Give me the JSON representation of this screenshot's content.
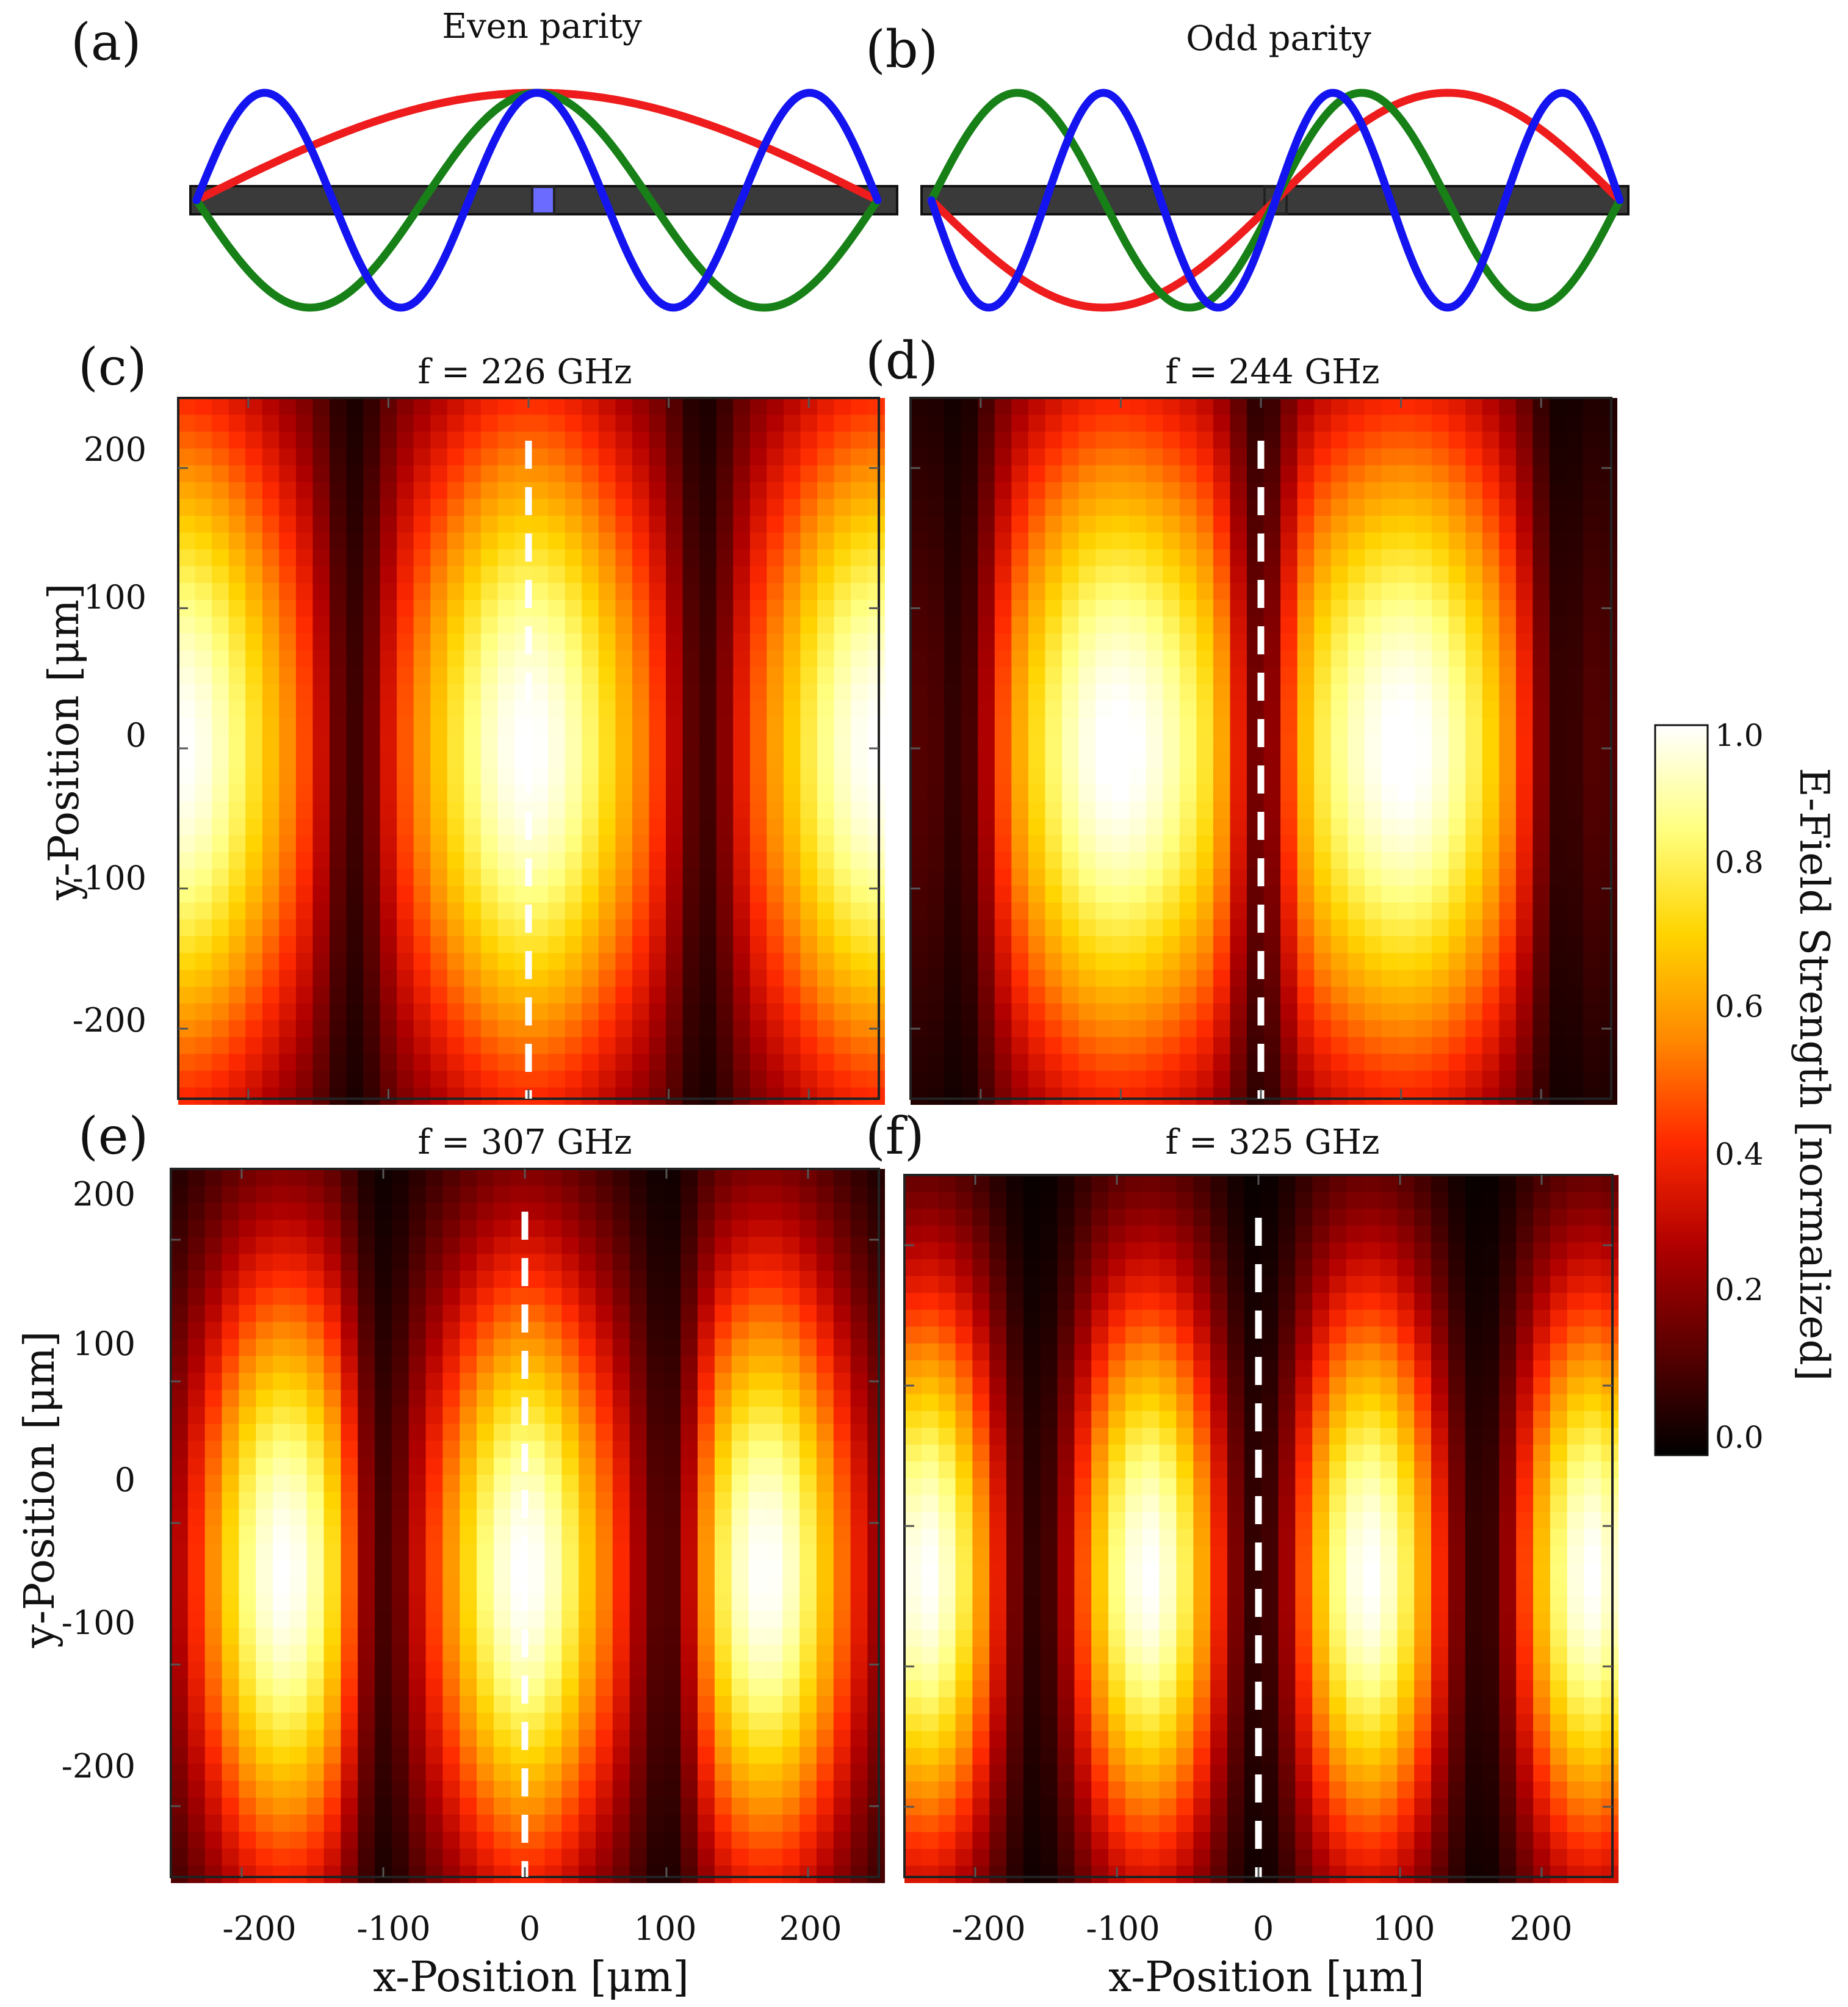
{
  "figure": {
    "panel_labels": [
      "(a)",
      "(b)",
      "(c)",
      "(d)",
      "(e)",
      "(f)"
    ],
    "colors": {
      "mode_1": "#ee1c1c",
      "mode_2": "#178017",
      "mode_3": "#1414f0",
      "waveguide": "#3a3a3a",
      "center_marker": "#6b6bff",
      "dashed_line": "#ffffff",
      "colormap": [
        "#000000",
        "#5a0000",
        "#b00000",
        "#ff2a00",
        "#ff8a00",
        "#ffd400",
        "#ffff80",
        "#ffffff"
      ]
    }
  },
  "chart_data": [
    {
      "id": "a",
      "type": "line",
      "title": "Even parity",
      "xlabel": "",
      "ylabel": "",
      "x_range": [
        -1,
        1
      ],
      "series": [
        {
          "half_waves": 1,
          "color": "#ee1c1c",
          "function": "cos(pi*1*x/2)",
          "points": [
            [
              -1,
              0
            ],
            [
              -0.5,
              0.707
            ],
            [
              0,
              1
            ],
            [
              0.5,
              0.707
            ],
            [
              1,
              0
            ]
          ]
        },
        {
          "half_waves": 3,
          "color": "#178017",
          "function": "cos(pi*3*x/2)",
          "points": [
            [
              -1,
              0
            ],
            [
              -0.667,
              -1
            ],
            [
              0,
              1
            ],
            [
              0.667,
              -1
            ],
            [
              1,
              0
            ]
          ]
        },
        {
          "half_waves": 5,
          "color": "#1414f0",
          "function": "cos(pi*5*x/2)",
          "points": [
            [
              -1,
              0
            ],
            [
              -0.8,
              1
            ],
            [
              -0.4,
              -1
            ],
            [
              0,
              1
            ],
            [
              0.4,
              -1
            ],
            [
              0.8,
              1
            ],
            [
              1,
              0
            ]
          ]
        }
      ]
    },
    {
      "id": "b",
      "type": "line",
      "title": "Odd parity",
      "xlabel": "",
      "ylabel": "",
      "x_range": [
        -1,
        1
      ],
      "series": [
        {
          "half_waves": 2,
          "color": "#ee1c1c",
          "function": "sin(pi*2*x/2)",
          "points": [
            [
              -1,
              0
            ],
            [
              -0.5,
              -1
            ],
            [
              0,
              0
            ],
            [
              0.5,
              1
            ],
            [
              1,
              0
            ]
          ]
        },
        {
          "half_waves": 4,
          "color": "#178017",
          "function": "sin(pi*4*x/2)",
          "points": [
            [
              -1,
              0
            ],
            [
              -0.75,
              1
            ],
            [
              -0.25,
              -1
            ],
            [
              0,
              0
            ],
            [
              0.25,
              1
            ],
            [
              0.75,
              -1
            ],
            [
              1,
              0
            ]
          ]
        },
        {
          "half_waves": 6,
          "color": "#1414f0",
          "function": "sin(pi*6*x/2)",
          "points": [
            [
              -1,
              0
            ],
            [
              -0.833,
              -1
            ],
            [
              -0.5,
              1
            ],
            [
              -0.167,
              -1
            ],
            [
              0,
              0
            ],
            [
              0.167,
              1
            ],
            [
              0.5,
              -1
            ],
            [
              0.833,
              1
            ],
            [
              1,
              0
            ]
          ]
        }
      ]
    },
    {
      "id": "c",
      "type": "heatmap",
      "title": "f = 226 GHz",
      "xlabel": "",
      "ylabel": "y-Position [μm]",
      "xlim": [
        -250,
        250
      ],
      "ylim": [
        -250,
        250
      ],
      "xticks": [],
      "yticks": [
        "200",
        "100",
        "0",
        "-100",
        "-200"
      ],
      "field_model": {
        "lobe_centers_x": [
          -250,
          0,
          250
        ],
        "lobe_center_y": 0,
        "lobe_sigma_x": 70,
        "lobe_sigma_y": 190,
        "null_x": [
          -125,
          125
        ],
        "peak": 1.0,
        "pixel_um": 12
      }
    },
    {
      "id": "d",
      "type": "heatmap",
      "title": "f = 244 GHz",
      "xlabel": "",
      "ylabel": "",
      "xlim": [
        -250,
        250
      ],
      "ylim": [
        -250,
        250
      ],
      "xticks": [],
      "yticks": [],
      "field_model": {
        "lobe_centers_x": [
          -105,
          105
        ],
        "lobe_center_y": 0,
        "lobe_sigma_x": 72,
        "lobe_sigma_y": 185,
        "null_x": [
          -215,
          0,
          215
        ],
        "peak": 1.0,
        "pixel_um": 12
      }
    },
    {
      "id": "e",
      "type": "heatmap",
      "title": "f = 307 GHz",
      "xlabel": "x-Position [μm]",
      "ylabel": "y-Position [μm]",
      "xlim": [
        -250,
        250
      ],
      "ylim": [
        -250,
        250
      ],
      "xticks": [
        "-200",
        "-100",
        "0",
        "100",
        "200"
      ],
      "yticks": [
        "200",
        "100",
        "0",
        "-100",
        "-200"
      ],
      "field_model": {
        "lobe_centers_x": [
          -170,
          0,
          170
        ],
        "lobe_center_y": -35,
        "lobe_sigma_x": 48,
        "lobe_sigma_y": 160,
        "null_x": [
          -100,
          100
        ],
        "peak": 1.0,
        "pixel_um": 12
      }
    },
    {
      "id": "f",
      "type": "heatmap",
      "title": "f = 325 GHz",
      "xlabel": "x-Position [μm]",
      "ylabel": "",
      "xlim": [
        -250,
        250
      ],
      "ylim": [
        -250,
        250
      ],
      "xticks": [
        "-200",
        "-100",
        "0",
        "100",
        "200"
      ],
      "yticks": [],
      "field_model": {
        "lobe_centers_x": [
          -235,
          -78,
          78,
          235
        ],
        "lobe_center_y": -35,
        "lobe_sigma_x": 40,
        "lobe_sigma_y": 150,
        "null_x": [
          -157,
          0,
          157
        ],
        "peak": 1.0,
        "pixel_um": 12
      }
    },
    {
      "id": "colorbar",
      "type": "colorbar",
      "label": "E-Field Strength [normalized]",
      "range": [
        0.0,
        1.0
      ],
      "ticks": [
        "1.0",
        "0.8",
        "0.6",
        "0.4",
        "0.2",
        "0.0"
      ]
    }
  ]
}
